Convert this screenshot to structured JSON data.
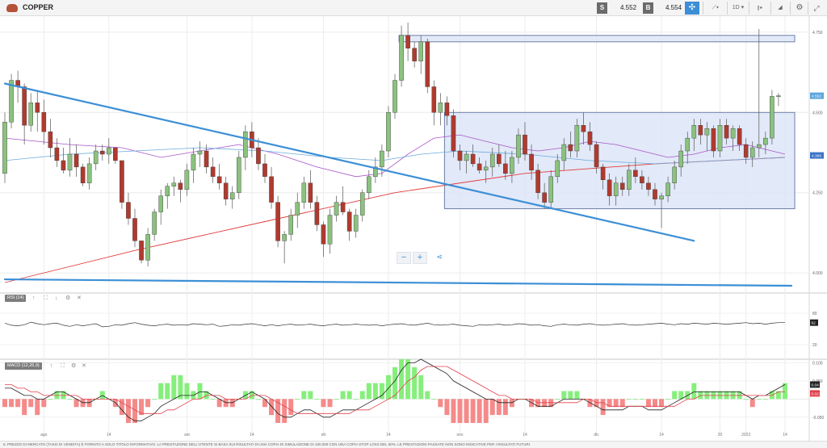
{
  "header": {
    "title": "COPPER",
    "sell_label": "S",
    "sell_price": "4.552",
    "buy_label": "B",
    "buy_price": "4.554",
    "interval": "1D"
  },
  "footer": {
    "disclaimer": "IL PREZZO DI MERCATO (TASSI DI VENDITA) È FORNITO A SOLO TITOLO INFORMATIVO. LA PRESTAZIONE DELL'UTENTE SI BASA SUI RISULTATI DI UNA COPIA DI SIMULAZIONE DI 100.000 CON UNA COPIA STOP LOSS DEL 60%. LE PRESTAZIONI PASSATE NON SONO INDICATIVE PER I RISULTATI FUTURI."
  },
  "zoom": {
    "minus": "−",
    "plus": "+",
    "share": "⋖"
  },
  "indicators": {
    "rsi_label": "RSI (14)",
    "macd_label": "MACD (12,26,9)",
    "ctrl_up": "↑",
    "ctrl_expand": "⛶",
    "ctrl_down": "↓",
    "ctrl_settings": "⚙",
    "ctrl_close": "✕"
  },
  "colors": {
    "bull": "#8ac27e",
    "bear": "#b03a2e",
    "trendline": "#3c8fd6",
    "box_fill": "#dde5f7",
    "box_stroke": "#6d7fa8",
    "ma_red": "#e23c3c",
    "ma_purple": "#a855c9",
    "ma_blue": "#6aaadd",
    "hist_pos": "#86ef7c",
    "hist_neg": "#f58a8a"
  },
  "chart_data": {
    "type": "candlestick",
    "price_axis": {
      "min": 3.95,
      "max": 4.8,
      "ticks": [
        "4.000",
        "4.250",
        "4.500",
        "4.750"
      ],
      "current_labels": [
        "4.552",
        "4.366"
      ]
    },
    "x_axis_labels": [
      "ago",
      "14",
      "set",
      "14",
      "ott",
      "14",
      "nov",
      "14",
      "dic",
      "14",
      "20",
      "2022",
      "14"
    ],
    "candles_ohlc": [
      [
        4.31,
        4.5,
        4.28,
        4.47
      ],
      [
        4.47,
        4.62,
        4.45,
        4.6
      ],
      [
        4.6,
        4.63,
        4.53,
        4.58
      ],
      [
        4.58,
        4.59,
        4.4,
        4.46
      ],
      [
        4.46,
        4.56,
        4.44,
        4.53
      ],
      [
        4.53,
        4.57,
        4.44,
        4.5
      ],
      [
        4.5,
        4.54,
        4.4,
        4.44
      ],
      [
        4.44,
        4.48,
        4.36,
        4.39
      ],
      [
        4.39,
        4.42,
        4.33,
        4.35
      ],
      [
        4.35,
        4.39,
        4.31,
        4.32
      ],
      [
        4.32,
        4.42,
        4.3,
        4.37
      ],
      [
        4.37,
        4.4,
        4.3,
        4.33
      ],
      [
        4.33,
        4.34,
        4.27,
        4.28
      ],
      [
        4.28,
        4.36,
        4.26,
        4.34
      ],
      [
        4.34,
        4.4,
        4.32,
        4.38
      ],
      [
        4.38,
        4.4,
        4.35,
        4.37
      ],
      [
        4.37,
        4.42,
        4.34,
        4.39
      ],
      [
        4.39,
        4.39,
        4.34,
        4.35
      ],
      [
        4.35,
        4.35,
        4.2,
        4.22
      ],
      [
        4.22,
        4.25,
        4.15,
        4.17
      ],
      [
        4.17,
        4.2,
        4.08,
        4.1
      ],
      [
        4.1,
        4.1,
        4.03,
        4.04
      ],
      [
        4.04,
        4.14,
        4.02,
        4.12
      ],
      [
        4.12,
        4.2,
        4.1,
        4.19
      ],
      [
        4.19,
        4.26,
        4.15,
        4.24
      ],
      [
        4.24,
        4.28,
        4.2,
        4.27
      ],
      [
        4.27,
        4.3,
        4.24,
        4.28
      ],
      [
        4.28,
        4.29,
        4.22,
        4.26
      ],
      [
        4.26,
        4.34,
        4.24,
        4.32
      ],
      [
        4.32,
        4.39,
        4.28,
        4.37
      ],
      [
        4.37,
        4.41,
        4.33,
        4.38
      ],
      [
        4.38,
        4.4,
        4.31,
        4.33
      ],
      [
        4.33,
        4.36,
        4.28,
        4.3
      ],
      [
        4.3,
        4.34,
        4.26,
        4.28
      ],
      [
        4.28,
        4.3,
        4.21,
        4.23
      ],
      [
        4.23,
        4.27,
        4.2,
        4.25
      ],
      [
        4.25,
        4.38,
        4.23,
        4.36
      ],
      [
        4.36,
        4.46,
        4.32,
        4.44
      ],
      [
        4.44,
        4.47,
        4.36,
        4.39
      ],
      [
        4.39,
        4.42,
        4.32,
        4.34
      ],
      [
        4.34,
        4.37,
        4.28,
        4.3
      ],
      [
        4.3,
        4.33,
        4.2,
        4.22
      ],
      [
        4.22,
        4.24,
        4.08,
        4.1
      ],
      [
        4.1,
        4.13,
        4.03,
        4.12
      ],
      [
        4.12,
        4.2,
        4.1,
        4.18
      ],
      [
        4.18,
        4.25,
        4.14,
        4.22
      ],
      [
        4.22,
        4.3,
        4.2,
        4.28
      ],
      [
        4.28,
        4.32,
        4.2,
        4.22
      ],
      [
        4.22,
        4.24,
        4.13,
        4.15
      ],
      [
        4.15,
        4.16,
        4.05,
        4.09
      ],
      [
        4.09,
        4.2,
        4.06,
        4.18
      ],
      [
        4.18,
        4.24,
        4.16,
        4.22
      ],
      [
        4.22,
        4.27,
        4.18,
        4.19
      ],
      [
        4.19,
        4.2,
        4.1,
        4.13
      ],
      [
        4.13,
        4.2,
        4.11,
        4.18
      ],
      [
        4.18,
        4.26,
        4.16,
        4.25
      ],
      [
        4.25,
        4.32,
        4.23,
        4.3
      ],
      [
        4.3,
        4.36,
        4.28,
        4.33
      ],
      [
        4.33,
        4.4,
        4.3,
        4.38
      ],
      [
        4.38,
        4.52,
        4.36,
        4.5
      ],
      [
        4.5,
        4.62,
        4.48,
        4.6
      ],
      [
        4.6,
        4.77,
        4.58,
        4.74
      ],
      [
        4.74,
        4.78,
        4.66,
        4.7
      ],
      [
        4.7,
        4.72,
        4.64,
        4.66
      ],
      [
        4.66,
        4.74,
        4.62,
        4.72
      ],
      [
        4.72,
        4.73,
        4.56,
        4.58
      ],
      [
        4.58,
        4.6,
        4.46,
        4.5
      ],
      [
        4.5,
        4.56,
        4.46,
        4.53
      ],
      [
        4.53,
        4.55,
        4.46,
        4.49
      ],
      [
        4.49,
        4.51,
        4.36,
        4.38
      ],
      [
        4.38,
        4.4,
        4.32,
        4.35
      ],
      [
        4.35,
        4.38,
        4.31,
        4.37
      ],
      [
        4.37,
        4.4,
        4.33,
        4.34
      ],
      [
        4.34,
        4.36,
        4.31,
        4.32
      ],
      [
        4.32,
        4.35,
        4.28,
        4.33
      ],
      [
        4.33,
        4.39,
        4.3,
        4.37
      ],
      [
        4.37,
        4.4,
        4.33,
        4.34
      ],
      [
        4.34,
        4.38,
        4.29,
        4.31
      ],
      [
        4.31,
        4.38,
        4.28,
        4.36
      ],
      [
        4.36,
        4.45,
        4.34,
        4.43
      ],
      [
        4.43,
        4.47,
        4.35,
        4.37
      ],
      [
        4.37,
        4.4,
        4.29,
        4.32
      ],
      [
        4.32,
        4.34,
        4.23,
        4.25
      ],
      [
        4.25,
        4.28,
        4.2,
        4.22
      ],
      [
        4.22,
        4.32,
        4.2,
        4.3
      ],
      [
        4.3,
        4.37,
        4.28,
        4.35
      ],
      [
        4.35,
        4.42,
        4.32,
        4.4
      ],
      [
        4.4,
        4.44,
        4.36,
        4.38
      ],
      [
        4.38,
        4.48,
        4.36,
        4.46
      ],
      [
        4.46,
        4.5,
        4.4,
        4.44
      ],
      [
        4.44,
        4.47,
        4.38,
        4.4
      ],
      [
        4.4,
        4.41,
        4.31,
        4.33
      ],
      [
        4.33,
        4.34,
        4.26,
        4.29
      ],
      [
        4.29,
        4.31,
        4.21,
        4.24
      ],
      [
        4.24,
        4.3,
        4.21,
        4.28
      ],
      [
        4.28,
        4.3,
        4.24,
        4.26
      ],
      [
        4.26,
        4.34,
        4.24,
        4.32
      ],
      [
        4.32,
        4.36,
        4.28,
        4.3
      ],
      [
        4.3,
        4.32,
        4.26,
        4.28
      ],
      [
        4.28,
        4.3,
        4.24,
        4.26
      ],
      [
        4.26,
        4.28,
        4.21,
        4.23
      ],
      [
        4.23,
        4.25,
        4.14,
        4.24
      ],
      [
        4.24,
        4.3,
        4.22,
        4.28
      ],
      [
        4.28,
        4.35,
        4.26,
        4.33
      ],
      [
        4.33,
        4.4,
        4.3,
        4.38
      ],
      [
        4.38,
        4.44,
        4.34,
        4.42
      ],
      [
        4.42,
        4.48,
        4.38,
        4.46
      ],
      [
        4.46,
        4.48,
        4.4,
        4.43
      ],
      [
        4.43,
        4.47,
        4.38,
        4.45
      ],
      [
        4.45,
        4.46,
        4.36,
        4.38
      ],
      [
        4.38,
        4.48,
        4.36,
        4.46
      ],
      [
        4.46,
        4.48,
        4.4,
        4.42
      ],
      [
        4.42,
        4.46,
        4.38,
        4.45
      ],
      [
        4.45,
        4.46,
        4.38,
        4.4
      ],
      [
        4.4,
        4.42,
        4.34,
        4.36
      ],
      [
        4.36,
        4.41,
        4.33,
        4.39
      ],
      [
        4.39,
        4.76,
        4.36,
        4.4
      ],
      [
        4.4,
        4.44,
        4.37,
        4.42
      ],
      [
        4.42,
        4.57,
        4.4,
        4.55
      ],
      [
        4.55,
        4.56,
        4.52,
        4.552
      ]
    ],
    "ma_red": [
      [
        0,
        3.97
      ],
      [
        20,
        4.07
      ],
      [
        40,
        4.16
      ],
      [
        60,
        4.25
      ],
      [
        80,
        4.31
      ],
      [
        100,
        4.34
      ],
      [
        120,
        4.36
      ]
    ],
    "ma_purple": [
      [
        0,
        4.42
      ],
      [
        5,
        4.41
      ],
      [
        10,
        4.4
      ],
      [
        18,
        4.39
      ],
      [
        24,
        4.36
      ],
      [
        30,
        4.38
      ],
      [
        36,
        4.4
      ],
      [
        42,
        4.37
      ],
      [
        48,
        4.33
      ],
      [
        54,
        4.3
      ],
      [
        58,
        4.31
      ],
      [
        62,
        4.37
      ],
      [
        66,
        4.42
      ],
      [
        70,
        4.43
      ],
      [
        74,
        4.41
      ],
      [
        78,
        4.39
      ],
      [
        82,
        4.38
      ],
      [
        86,
        4.39
      ],
      [
        90,
        4.41
      ],
      [
        94,
        4.4
      ],
      [
        98,
        4.38
      ],
      [
        102,
        4.36
      ],
      [
        106,
        4.37
      ],
      [
        110,
        4.39
      ],
      [
        114,
        4.4
      ],
      [
        118,
        4.38
      ],
      [
        120,
        4.37
      ]
    ],
    "ma_blue": [
      [
        0,
        4.35
      ],
      [
        10,
        4.37
      ],
      [
        20,
        4.38
      ],
      [
        30,
        4.39
      ],
      [
        40,
        4.38
      ],
      [
        50,
        4.36
      ],
      [
        58,
        4.35
      ],
      [
        64,
        4.37
      ],
      [
        70,
        4.38
      ],
      [
        80,
        4.37
      ],
      [
        90,
        4.35
      ],
      [
        100,
        4.34
      ],
      [
        110,
        4.35
      ],
      [
        120,
        4.36
      ]
    ],
    "trendlines": [
      [
        [
          0,
          4.59
        ],
        [
          106,
          4.1
        ]
      ],
      [
        [
          0,
          3.98
        ],
        [
          121,
          3.96
        ]
      ]
    ],
    "zones": [
      {
        "from_index": 61,
        "to_index": 121,
        "top": 4.74,
        "bottom": 4.72
      },
      {
        "from_index": 68,
        "to_index": 121,
        "top": 4.5,
        "bottom": 4.2
      }
    ],
    "rsi": {
      "ticks": [
        "80",
        "20"
      ],
      "current_label": "62",
      "values": [
        61,
        57,
        56,
        58,
        63,
        60,
        58,
        60,
        61,
        57,
        55,
        58,
        56,
        58,
        60,
        54,
        55,
        58,
        57,
        60,
        62,
        59,
        57,
        56,
        58,
        59,
        57,
        58,
        57,
        60,
        59,
        58,
        59,
        55,
        56,
        58,
        57,
        59,
        60,
        58,
        56,
        58,
        56,
        58,
        59,
        57,
        58,
        59,
        57,
        56,
        58,
        59,
        57,
        58,
        59,
        58,
        57,
        58,
        56,
        58,
        59,
        60,
        58,
        57,
        59,
        61,
        58,
        57,
        58,
        59,
        57,
        56,
        55,
        58,
        57,
        58,
        59,
        57,
        58,
        60,
        59,
        57,
        58,
        56,
        55,
        58,
        59,
        58,
        57,
        59,
        60,
        58,
        57,
        58,
        59,
        60,
        58,
        57,
        58,
        59,
        60,
        61,
        59,
        58,
        60,
        59,
        61,
        60,
        59,
        61,
        60,
        59,
        60,
        61,
        62,
        60,
        61,
        59,
        61,
        62,
        62
      ]
    },
    "macd": {
      "ticks": [
        "0.100",
        "0.050",
        "-0.050"
      ],
      "current_labels": [
        "0.04",
        "0.02"
      ],
      "macd": [
        0.03,
        0.03,
        0.02,
        0.01,
        0.01,
        0.0,
        0.0,
        0.01,
        0.02,
        0.02,
        0.01,
        0.0,
        -0.01,
        -0.01,
        0.0,
        0.01,
        0.0,
        -0.01,
        -0.03,
        -0.05,
        -0.06,
        -0.06,
        -0.05,
        -0.04,
        -0.02,
        -0.01,
        0.0,
        0.01,
        0.01,
        0.01,
        0.02,
        0.02,
        0.01,
        0.0,
        -0.01,
        -0.01,
        0.0,
        0.01,
        0.02,
        0.01,
        0.0,
        -0.02,
        -0.04,
        -0.05,
        -0.05,
        -0.04,
        -0.03,
        -0.03,
        -0.04,
        -0.05,
        -0.05,
        -0.04,
        -0.03,
        -0.03,
        -0.03,
        -0.02,
        -0.01,
        0.0,
        0.01,
        0.03,
        0.05,
        0.08,
        0.1,
        0.1,
        0.11,
        0.1,
        0.09,
        0.08,
        0.07,
        0.05,
        0.04,
        0.03,
        0.02,
        0.01,
        0.0,
        0.0,
        -0.01,
        -0.01,
        -0.01,
        0.0,
        0.0,
        -0.01,
        -0.02,
        -0.02,
        -0.02,
        -0.01,
        0.0,
        0.0,
        0.0,
        0.0,
        -0.01,
        -0.02,
        -0.03,
        -0.03,
        -0.03,
        -0.03,
        -0.02,
        -0.02,
        -0.02,
        -0.03,
        -0.03,
        -0.03,
        -0.02,
        -0.01,
        0.0,
        0.01,
        0.02,
        0.02,
        0.02,
        0.02,
        0.02,
        0.02,
        0.02,
        0.02,
        0.01,
        0.0,
        0.01,
        0.01,
        0.02,
        0.03,
        0.04
      ],
      "signal": [
        0.04,
        0.04,
        0.03,
        0.03,
        0.02,
        0.02,
        0.01,
        0.01,
        0.01,
        0.01,
        0.01,
        0.01,
        0.0,
        0.0,
        0.0,
        0.0,
        0.0,
        0.0,
        -0.01,
        -0.02,
        -0.03,
        -0.04,
        -0.04,
        -0.04,
        -0.04,
        -0.03,
        -0.03,
        -0.02,
        -0.01,
        0.0,
        0.0,
        0.01,
        0.01,
        0.01,
        0.0,
        0.0,
        0.0,
        0.0,
        0.01,
        0.01,
        0.01,
        0.0,
        -0.01,
        -0.02,
        -0.03,
        -0.04,
        -0.04,
        -0.04,
        -0.04,
        -0.04,
        -0.04,
        -0.04,
        -0.04,
        -0.04,
        -0.03,
        -0.03,
        -0.03,
        -0.02,
        -0.01,
        0.0,
        0.01,
        0.03,
        0.05,
        0.06,
        0.08,
        0.09,
        0.09,
        0.09,
        0.09,
        0.08,
        0.07,
        0.06,
        0.05,
        0.04,
        0.03,
        0.02,
        0.01,
        0.01,
        0.0,
        0.0,
        0.0,
        0.0,
        -0.01,
        -0.01,
        -0.01,
        -0.01,
        -0.01,
        -0.01,
        -0.01,
        0.0,
        0.0,
        -0.01,
        -0.01,
        -0.02,
        -0.02,
        -0.02,
        -0.02,
        -0.02,
        -0.02,
        -0.02,
        -0.02,
        -0.02,
        -0.02,
        -0.02,
        -0.01,
        0.0,
        0.0,
        0.01,
        0.01,
        0.01,
        0.01,
        0.01,
        0.01,
        0.01,
        0.01,
        0.01,
        0.01,
        0.01,
        0.01,
        0.02,
        0.02
      ]
    }
  }
}
